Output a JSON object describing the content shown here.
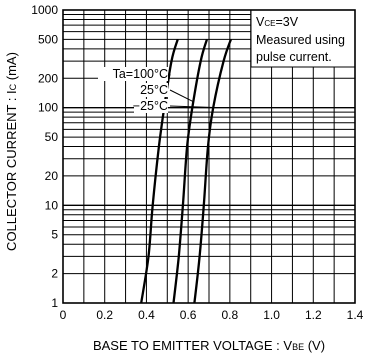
{
  "chart_data": {
    "type": "line",
    "xlabel": "BASE TO EMITTER VOLTAGE : V",
    "xlabel_sub": "BE",
    "xlabel_unit": " (V)",
    "ylabel": "COLLECTOR CURRENT : I",
    "ylabel_sub": "C",
    "ylabel_unit": " (mA)",
    "xlim": [
      0,
      1.4
    ],
    "ylim": [
      1,
      1000
    ],
    "yscale": "log",
    "grid": true,
    "x_ticks": [
      "0",
      "0.2",
      "0.4",
      "0.6",
      "0.8",
      "1.0",
      "1.2",
      "1.4"
    ],
    "x_tick_values": [
      0,
      0.2,
      0.4,
      0.6,
      0.8,
      1.0,
      1.2,
      1.4
    ],
    "y_ticks": [
      "1",
      "2",
      "5",
      "10",
      "20",
      "50",
      "100",
      "200",
      "500",
      "1000"
    ],
    "y_tick_values": [
      1,
      2,
      5,
      10,
      20,
      50,
      100,
      200,
      500,
      1000
    ],
    "conditions": {
      "line1_prefix": "V",
      "line1_sub": "CE",
      "line1_suffix": "=3V",
      "line2": "Measured using",
      "line3": "pulse current."
    },
    "series": [
      {
        "name": "Ta=100°C",
        "points": [
          [
            0.375,
            1
          ],
          [
            0.41,
            3
          ],
          [
            0.43,
            10
          ],
          [
            0.46,
            40
          ],
          [
            0.485,
            100
          ],
          [
            0.52,
            300
          ],
          [
            0.55,
            500
          ]
        ]
      },
      {
        "name": "25°C",
        "points": [
          [
            0.53,
            1
          ],
          [
            0.555,
            3
          ],
          [
            0.575,
            10
          ],
          [
            0.595,
            40
          ],
          [
            0.62,
            100
          ],
          [
            0.66,
            300
          ],
          [
            0.69,
            500
          ]
        ]
      },
      {
        "name": "−25°C",
        "points": [
          [
            0.63,
            1
          ],
          [
            0.655,
            3
          ],
          [
            0.675,
            10
          ],
          [
            0.695,
            40
          ],
          [
            0.72,
            100
          ],
          [
            0.77,
            300
          ],
          [
            0.805,
            500
          ]
        ]
      }
    ],
    "legend_labels": [
      "Ta=100°C",
      "25°C",
      "−25°C"
    ]
  }
}
